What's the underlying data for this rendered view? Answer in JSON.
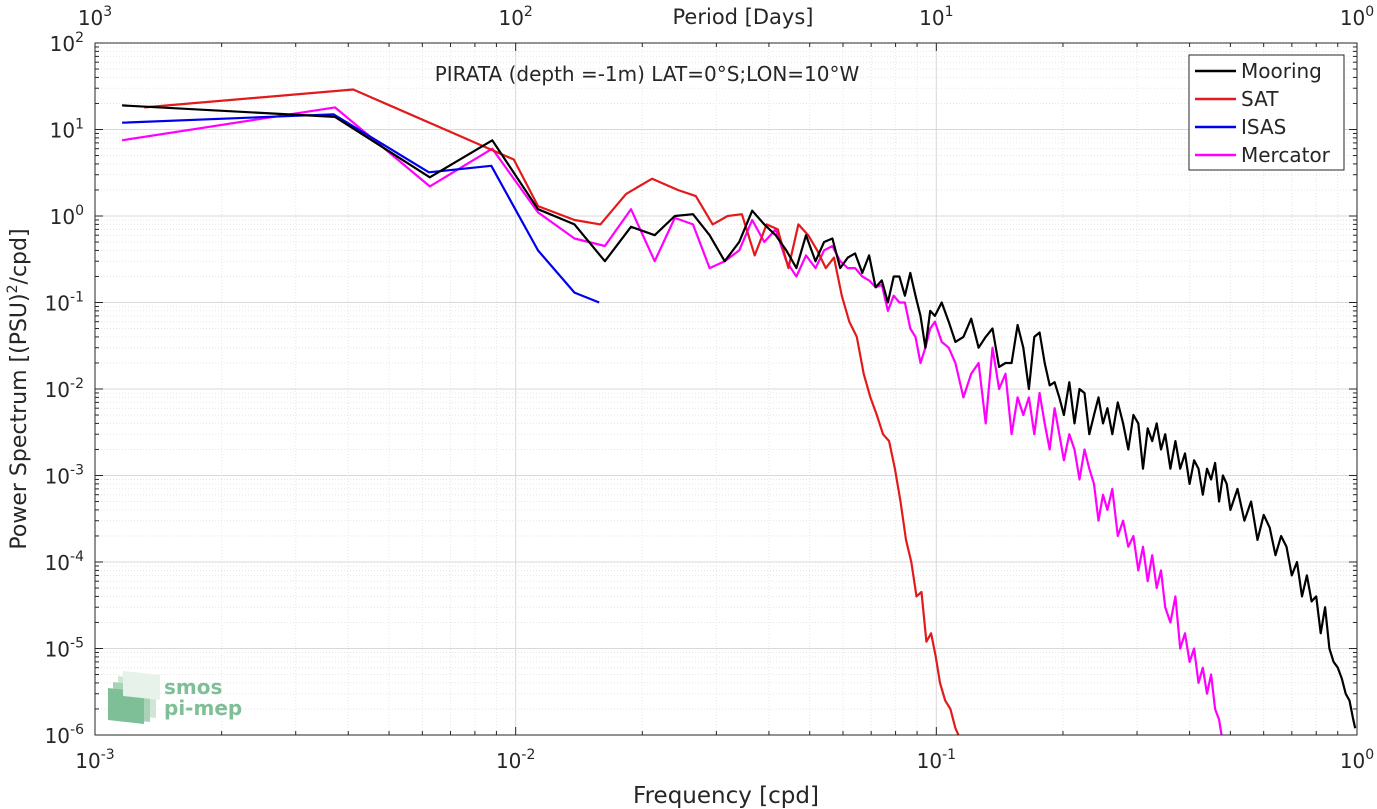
{
  "chart_data": {
    "type": "line",
    "title": "PIRATA (depth =-1m) LAT=0°S;LON=10°W",
    "xlabel": "Frequency [cpd]",
    "ylabel": "Power Spectrum [(PSU)",
    "ylabel_sup": "2",
    "ylabel_tail": "/cpd]",
    "top_axis_label": "Period [Days]",
    "x_scale": "log",
    "y_scale": "log",
    "xlim": [
      0.001,
      1
    ],
    "ylim": [
      1e-06,
      100
    ],
    "grid": true,
    "legend_position": "top-right",
    "x_ticks": [
      {
        "base": "10",
        "exp": "-3",
        "value": 0.001
      },
      {
        "base": "10",
        "exp": "-2",
        "value": 0.01
      },
      {
        "base": "10",
        "exp": "-1",
        "value": 0.1
      },
      {
        "base": "10",
        "exp": "0",
        "value": 1
      }
    ],
    "top_ticks": [
      {
        "base": "10",
        "exp": "3",
        "value": 0.001
      },
      {
        "base": "10",
        "exp": "2",
        "value": 0.01
      },
      {
        "base": "10",
        "exp": "1",
        "value": 0.1
      },
      {
        "base": "10",
        "exp": "0",
        "value": 1
      }
    ],
    "y_ticks": [
      {
        "base": "10",
        "exp": "2",
        "value": 100
      },
      {
        "base": "10",
        "exp": "1",
        "value": 10
      },
      {
        "base": "10",
        "exp": "0",
        "value": 1
      },
      {
        "base": "10",
        "exp": "-1",
        "value": 0.1
      },
      {
        "base": "10",
        "exp": "-2",
        "value": 0.01
      },
      {
        "base": "10",
        "exp": "-3",
        "value": 0.001
      },
      {
        "base": "10",
        "exp": "-4",
        "value": 0.0001
      },
      {
        "base": "10",
        "exp": "-5",
        "value": 1e-05
      },
      {
        "base": "10",
        "exp": "-6",
        "value": 1e-06
      }
    ],
    "series": [
      {
        "name": "Mooring",
        "color": "#000000",
        "x": [
          0.00116,
          0.00372,
          0.00625,
          0.0088,
          0.0113,
          0.0138,
          0.0163,
          0.0188,
          0.0214,
          0.0239,
          0.0264,
          0.0289,
          0.0314,
          0.034,
          0.0365,
          0.039,
          0.0415,
          0.044,
          0.0465,
          0.049,
          0.0516,
          0.0541,
          0.0566,
          0.0591,
          0.0616,
          0.0641,
          0.0667,
          0.0692,
          0.0717,
          0.0742,
          0.0767,
          0.0792,
          0.0817,
          0.0842,
          0.0867,
          0.0892,
          0.0917,
          0.0942,
          0.0967,
          0.0992,
          0.103,
          0.107,
          0.111,
          0.116,
          0.121,
          0.126,
          0.131,
          0.136,
          0.141,
          0.146,
          0.151,
          0.156,
          0.161,
          0.166,
          0.171,
          0.176,
          0.181,
          0.186,
          0.191,
          0.196,
          0.201,
          0.207,
          0.213,
          0.219,
          0.225,
          0.231,
          0.237,
          0.243,
          0.249,
          0.255,
          0.262,
          0.27,
          0.278,
          0.286,
          0.294,
          0.302,
          0.31,
          0.318,
          0.326,
          0.334,
          0.342,
          0.35,
          0.36,
          0.37,
          0.38,
          0.39,
          0.4,
          0.41,
          0.42,
          0.43,
          0.44,
          0.45,
          0.46,
          0.47,
          0.48,
          0.49,
          0.5,
          0.52,
          0.54,
          0.56,
          0.58,
          0.6,
          0.62,
          0.64,
          0.66,
          0.68,
          0.7,
          0.72,
          0.74,
          0.76,
          0.78,
          0.8,
          0.82,
          0.84,
          0.86,
          0.88,
          0.9,
          0.92,
          0.94,
          0.96,
          0.98,
          0.99
        ],
        "y": [
          19,
          14,
          2.8,
          7.5,
          1.2,
          0.8,
          0.3,
          0.75,
          0.6,
          1.0,
          1.05,
          0.6,
          0.3,
          0.5,
          1.15,
          0.8,
          0.6,
          0.4,
          0.25,
          0.6,
          0.3,
          0.5,
          0.55,
          0.25,
          0.33,
          0.37,
          0.22,
          0.35,
          0.15,
          0.18,
          0.1,
          0.2,
          0.2,
          0.12,
          0.22,
          0.12,
          0.07,
          0.03,
          0.08,
          0.07,
          0.1,
          0.06,
          0.035,
          0.04,
          0.065,
          0.03,
          0.04,
          0.05,
          0.018,
          0.02,
          0.02,
          0.055,
          0.03,
          0.01,
          0.04,
          0.045,
          0.02,
          0.011,
          0.012,
          0.008,
          0.005,
          0.012,
          0.004,
          0.01,
          0.009,
          0.003,
          0.005,
          0.008,
          0.004,
          0.006,
          0.003,
          0.007,
          0.004,
          0.002,
          0.005,
          0.004,
          0.0012,
          0.0035,
          0.0025,
          0.004,
          0.002,
          0.003,
          0.0012,
          0.0025,
          0.0012,
          0.0018,
          0.0008,
          0.0015,
          0.0012,
          0.0006,
          0.0012,
          0.0009,
          0.0014,
          0.0005,
          0.001,
          0.0008,
          0.0004,
          0.0007,
          0.0003,
          0.0005,
          0.00018,
          0.00035,
          0.00025,
          0.00012,
          0.0002,
          0.00015,
          7e-05,
          0.0001,
          4e-05,
          7e-05,
          3.5e-05,
          4e-05,
          1.5e-05,
          3e-05,
          1e-05,
          7e-06,
          6e-06,
          4.5e-06,
          3e-06,
          2.5e-06,
          1.5e-06,
          1.2e-06
        ]
      },
      {
        "name": "SAT",
        "color": "#e31a1c",
        "x": [
          0.00131,
          0.00411,
          0.0099,
          0.0113,
          0.0138,
          0.0159,
          0.0183,
          0.0211,
          0.0243,
          0.0268,
          0.0294,
          0.0319,
          0.0345,
          0.037,
          0.0395,
          0.042,
          0.0445,
          0.047,
          0.0496,
          0.0521,
          0.0546,
          0.0571,
          0.0596,
          0.0621,
          0.0647,
          0.0672,
          0.0697,
          0.0722,
          0.0747,
          0.0772,
          0.0797,
          0.0822,
          0.0847,
          0.0872,
          0.0897,
          0.0922,
          0.0947,
          0.0972,
          0.0997,
          0.102,
          0.105,
          0.108,
          0.111,
          0.114,
          0.117,
          0.12,
          0.123
        ],
        "y": [
          18,
          29,
          4.5,
          1.3,
          0.9,
          0.8,
          1.8,
          2.7,
          2.0,
          1.7,
          0.8,
          1.0,
          1.05,
          0.35,
          0.8,
          0.7,
          0.25,
          0.8,
          0.6,
          0.4,
          0.25,
          0.33,
          0.12,
          0.06,
          0.04,
          0.015,
          0.008,
          0.005,
          0.003,
          0.0025,
          0.0012,
          0.0005,
          0.00018,
          0.0001,
          4e-05,
          4.5e-05,
          1.2e-05,
          1.5e-05,
          8e-06,
          4e-06,
          2.5e-06,
          2e-06,
          1.2e-06,
          9e-07,
          7e-07,
          5.5e-07,
          5e-07
        ]
      },
      {
        "name": "ISAS",
        "color": "#0000ee",
        "x": [
          0.00116,
          0.00369,
          0.00622,
          0.00875,
          0.0113,
          0.0138,
          0.0158
        ],
        "y": [
          12,
          15,
          3.2,
          3.8,
          0.4,
          0.13,
          0.1
        ]
      },
      {
        "name": "Mercator",
        "color": "#ff00ff",
        "x": [
          0.00116,
          0.00372,
          0.00625,
          0.0088,
          0.0113,
          0.0138,
          0.0163,
          0.0188,
          0.0214,
          0.0239,
          0.0264,
          0.0289,
          0.0314,
          0.034,
          0.0365,
          0.039,
          0.0415,
          0.044,
          0.0465,
          0.049,
          0.0516,
          0.0541,
          0.0566,
          0.0591,
          0.0616,
          0.0641,
          0.0667,
          0.0692,
          0.0717,
          0.0742,
          0.0767,
          0.0792,
          0.0817,
          0.0842,
          0.0867,
          0.0892,
          0.0917,
          0.0942,
          0.0967,
          0.0992,
          0.103,
          0.107,
          0.111,
          0.116,
          0.121,
          0.126,
          0.131,
          0.136,
          0.141,
          0.146,
          0.151,
          0.156,
          0.161,
          0.166,
          0.171,
          0.176,
          0.181,
          0.186,
          0.191,
          0.196,
          0.201,
          0.207,
          0.213,
          0.219,
          0.225,
          0.231,
          0.237,
          0.243,
          0.249,
          0.255,
          0.262,
          0.27,
          0.278,
          0.286,
          0.294,
          0.302,
          0.31,
          0.318,
          0.326,
          0.334,
          0.342,
          0.35,
          0.36,
          0.37,
          0.38,
          0.39,
          0.4,
          0.41,
          0.42,
          0.43,
          0.44,
          0.45,
          0.46,
          0.47,
          0.48
        ],
        "y": [
          7.5,
          18,
          2.2,
          6.0,
          1.1,
          0.55,
          0.45,
          1.2,
          0.3,
          0.95,
          0.8,
          0.25,
          0.3,
          0.4,
          0.9,
          0.5,
          0.7,
          0.3,
          0.2,
          0.35,
          0.25,
          0.4,
          0.45,
          0.3,
          0.25,
          0.25,
          0.2,
          0.18,
          0.15,
          0.16,
          0.08,
          0.12,
          0.1,
          0.1,
          0.05,
          0.04,
          0.02,
          0.03,
          0.05,
          0.06,
          0.035,
          0.03,
          0.02,
          0.008,
          0.015,
          0.02,
          0.004,
          0.03,
          0.01,
          0.015,
          0.003,
          0.008,
          0.005,
          0.008,
          0.003,
          0.009,
          0.004,
          0.002,
          0.006,
          0.003,
          0.0015,
          0.003,
          0.002,
          0.0009,
          0.002,
          0.0012,
          0.0008,
          0.0003,
          0.0006,
          0.0004,
          0.0007,
          0.0002,
          0.0003,
          0.00015,
          0.0002,
          8e-05,
          0.00015,
          6e-05,
          0.00012,
          5e-05,
          8e-05,
          3e-05,
          2e-05,
          4e-05,
          1e-05,
          1.5e-05,
          7e-06,
          1e-05,
          4e-06,
          6e-06,
          3e-06,
          5e-06,
          2e-06,
          1.5e-06,
          8e-07
        ]
      }
    ]
  },
  "logo": {
    "line1": "smos",
    "line2": "pi-mep"
  }
}
